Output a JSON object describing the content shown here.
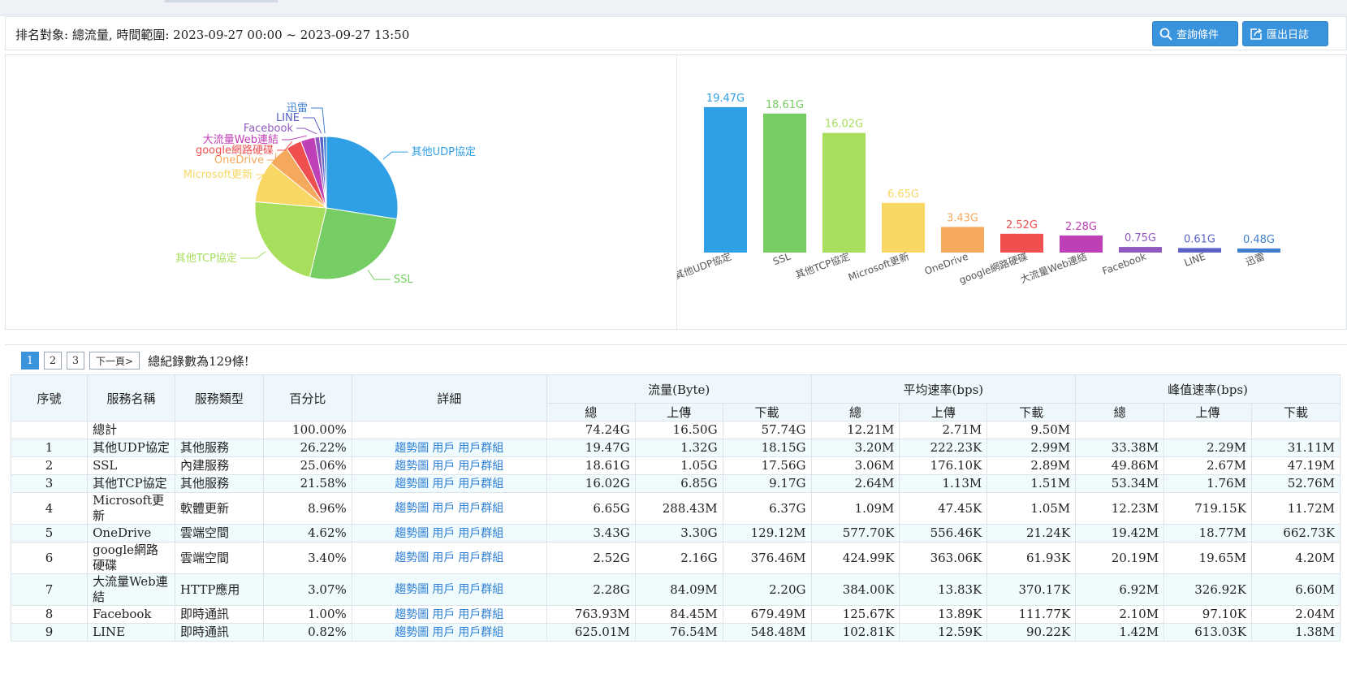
{
  "header": {
    "filter_text": "排名對象: 總流量, 時間範圍: 2023-09-27 00:00 ~ 2023-09-27 13:50",
    "query_button": "查詢條件",
    "export_button": "匯出日誌",
    "query_icon": "search-icon",
    "export_icon": "export-icon"
  },
  "chart_data": [
    {
      "type": "pie",
      "labels": [
        "其他UDP協定",
        "SSL",
        "其他TCP協定",
        "Microsoft更新",
        "OneDrive",
        "google網路硬碟",
        "大流量Web連結",
        "Facebook",
        "LINE",
        "迅雷"
      ],
      "values": [
        19.47,
        18.61,
        16.02,
        6.65,
        3.43,
        2.52,
        2.28,
        0.75,
        0.61,
        0.48
      ],
      "colors": [
        "#2f9fe6",
        "#76cd63",
        "#a7de5c",
        "#f8d764",
        "#f5a95d",
        "#f04f4f",
        "#bf3fb6",
        "#8e58c0",
        "#5a61c7",
        "#3f7fd0"
      ]
    },
    {
      "type": "bar",
      "categories": [
        "其他UDP協定",
        "SSL",
        "其他TCP協定",
        "Microsoft更新",
        "OneDrive",
        "google網路硬碟",
        "大流量Web連結",
        "Facebook",
        "LINE",
        "迅雷"
      ],
      "values": [
        19.47,
        18.61,
        16.02,
        6.65,
        3.43,
        2.52,
        2.28,
        0.75,
        0.61,
        0.48
      ],
      "data_labels": [
        "19.47G",
        "18.61G",
        "16.02G",
        "6.65G",
        "3.43G",
        "2.52G",
        "2.28G",
        "0.75G",
        "0.61G",
        "0.48G"
      ],
      "colors": [
        "#2f9fe6",
        "#76cd63",
        "#a7de5c",
        "#f8d764",
        "#f5a95d",
        "#f04f4f",
        "#bf3fb6",
        "#8e58c0",
        "#5a61c7",
        "#3f7fd0"
      ],
      "ylim": [
        0,
        20
      ]
    }
  ],
  "pager": {
    "pages": [
      "1",
      "2",
      "3"
    ],
    "active": "1",
    "next": "下一頁>",
    "total": "總紀錄數為129條!"
  },
  "table": {
    "headers": {
      "idx": "序號",
      "name": "服務名稱",
      "type": "服務類型",
      "pct": "百分比",
      "detail": "詳細",
      "traffic": "流量(Byte)",
      "avg": "平均速率(bps)",
      "peak": "峰值速率(bps)",
      "total": "總",
      "up": "上傳",
      "down": "下載"
    },
    "link_labels": [
      "趨勢圖",
      "用戶",
      "用戶群組"
    ],
    "summary": {
      "name": "總計",
      "pct": "100.00%",
      "t_total": "74.24G",
      "t_up": "16.50G",
      "t_down": "57.74G",
      "a_total": "12.21M",
      "a_up": "2.71M",
      "a_down": "9.50M"
    },
    "rows": [
      {
        "idx": "1",
        "name": "其他UDP協定",
        "type": "其他服務",
        "pct": "26.22%",
        "t_total": "19.47G",
        "t_up": "1.32G",
        "t_down": "18.15G",
        "a_total": "3.20M",
        "a_up": "222.23K",
        "a_down": "2.99M",
        "p_total": "33.38M",
        "p_up": "2.29M",
        "p_down": "31.11M",
        "tall": true
      },
      {
        "idx": "2",
        "name": "SSL",
        "type": "內建服務",
        "pct": "25.06%",
        "t_total": "18.61G",
        "t_up": "1.05G",
        "t_down": "17.56G",
        "a_total": "3.06M",
        "a_up": "176.10K",
        "a_down": "2.89M",
        "p_total": "49.86M",
        "p_up": "2.67M",
        "p_down": "47.19M",
        "tall": false
      },
      {
        "idx": "3",
        "name": "其他TCP協定",
        "type": "其他服務",
        "pct": "21.58%",
        "t_total": "16.02G",
        "t_up": "6.85G",
        "t_down": "9.17G",
        "a_total": "2.64M",
        "a_up": "1.13M",
        "a_down": "1.51M",
        "p_total": "53.34M",
        "p_up": "1.76M",
        "p_down": "52.76M",
        "tall": false
      },
      {
        "idx": "4",
        "name": "Microsoft更新",
        "type": "軟體更新",
        "pct": "8.96%",
        "t_total": "6.65G",
        "t_up": "288.43M",
        "t_down": "6.37G",
        "a_total": "1.09M",
        "a_up": "47.45K",
        "a_down": "1.05M",
        "p_total": "12.23M",
        "p_up": "719.15K",
        "p_down": "11.72M",
        "tall": false
      },
      {
        "idx": "5",
        "name": "OneDrive",
        "type": "雲端空間",
        "pct": "4.62%",
        "t_total": "3.43G",
        "t_up": "3.30G",
        "t_down": "129.12M",
        "a_total": "577.70K",
        "a_up": "556.46K",
        "a_down": "21.24K",
        "p_total": "19.42M",
        "p_up": "18.77M",
        "p_down": "662.73K",
        "tall": false
      },
      {
        "idx": "6",
        "name": "google網路硬碟",
        "type": "雲端空間",
        "pct": "3.40%",
        "t_total": "2.52G",
        "t_up": "2.16G",
        "t_down": "376.46M",
        "a_total": "424.99K",
        "a_up": "363.06K",
        "a_down": "61.93K",
        "p_total": "20.19M",
        "p_up": "19.65M",
        "p_down": "4.20M",
        "tall": true
      },
      {
        "idx": "7",
        "name": "大流量Web連結",
        "type": "HTTP應用",
        "pct": "3.07%",
        "t_total": "2.28G",
        "t_up": "84.09M",
        "t_down": "2.20G",
        "a_total": "384.00K",
        "a_up": "13.83K",
        "a_down": "370.17K",
        "p_total": "6.92M",
        "p_up": "326.92K",
        "p_down": "6.60M",
        "tall": true
      },
      {
        "idx": "8",
        "name": "Facebook",
        "type": "即時通訊",
        "pct": "1.00%",
        "t_total": "763.93M",
        "t_up": "84.45M",
        "t_down": "679.49M",
        "a_total": "125.67K",
        "a_up": "13.89K",
        "a_down": "111.77K",
        "p_total": "2.10M",
        "p_up": "97.10K",
        "p_down": "2.04M",
        "tall": false
      },
      {
        "idx": "9",
        "name": "LINE",
        "type": "即時通訊",
        "pct": "0.82%",
        "t_total": "625.01M",
        "t_up": "76.54M",
        "t_down": "548.48M",
        "a_total": "102.81K",
        "a_up": "12.59K",
        "a_down": "90.22K",
        "p_total": "1.42M",
        "p_up": "613.03K",
        "p_down": "1.38M",
        "tall": false
      }
    ]
  }
}
